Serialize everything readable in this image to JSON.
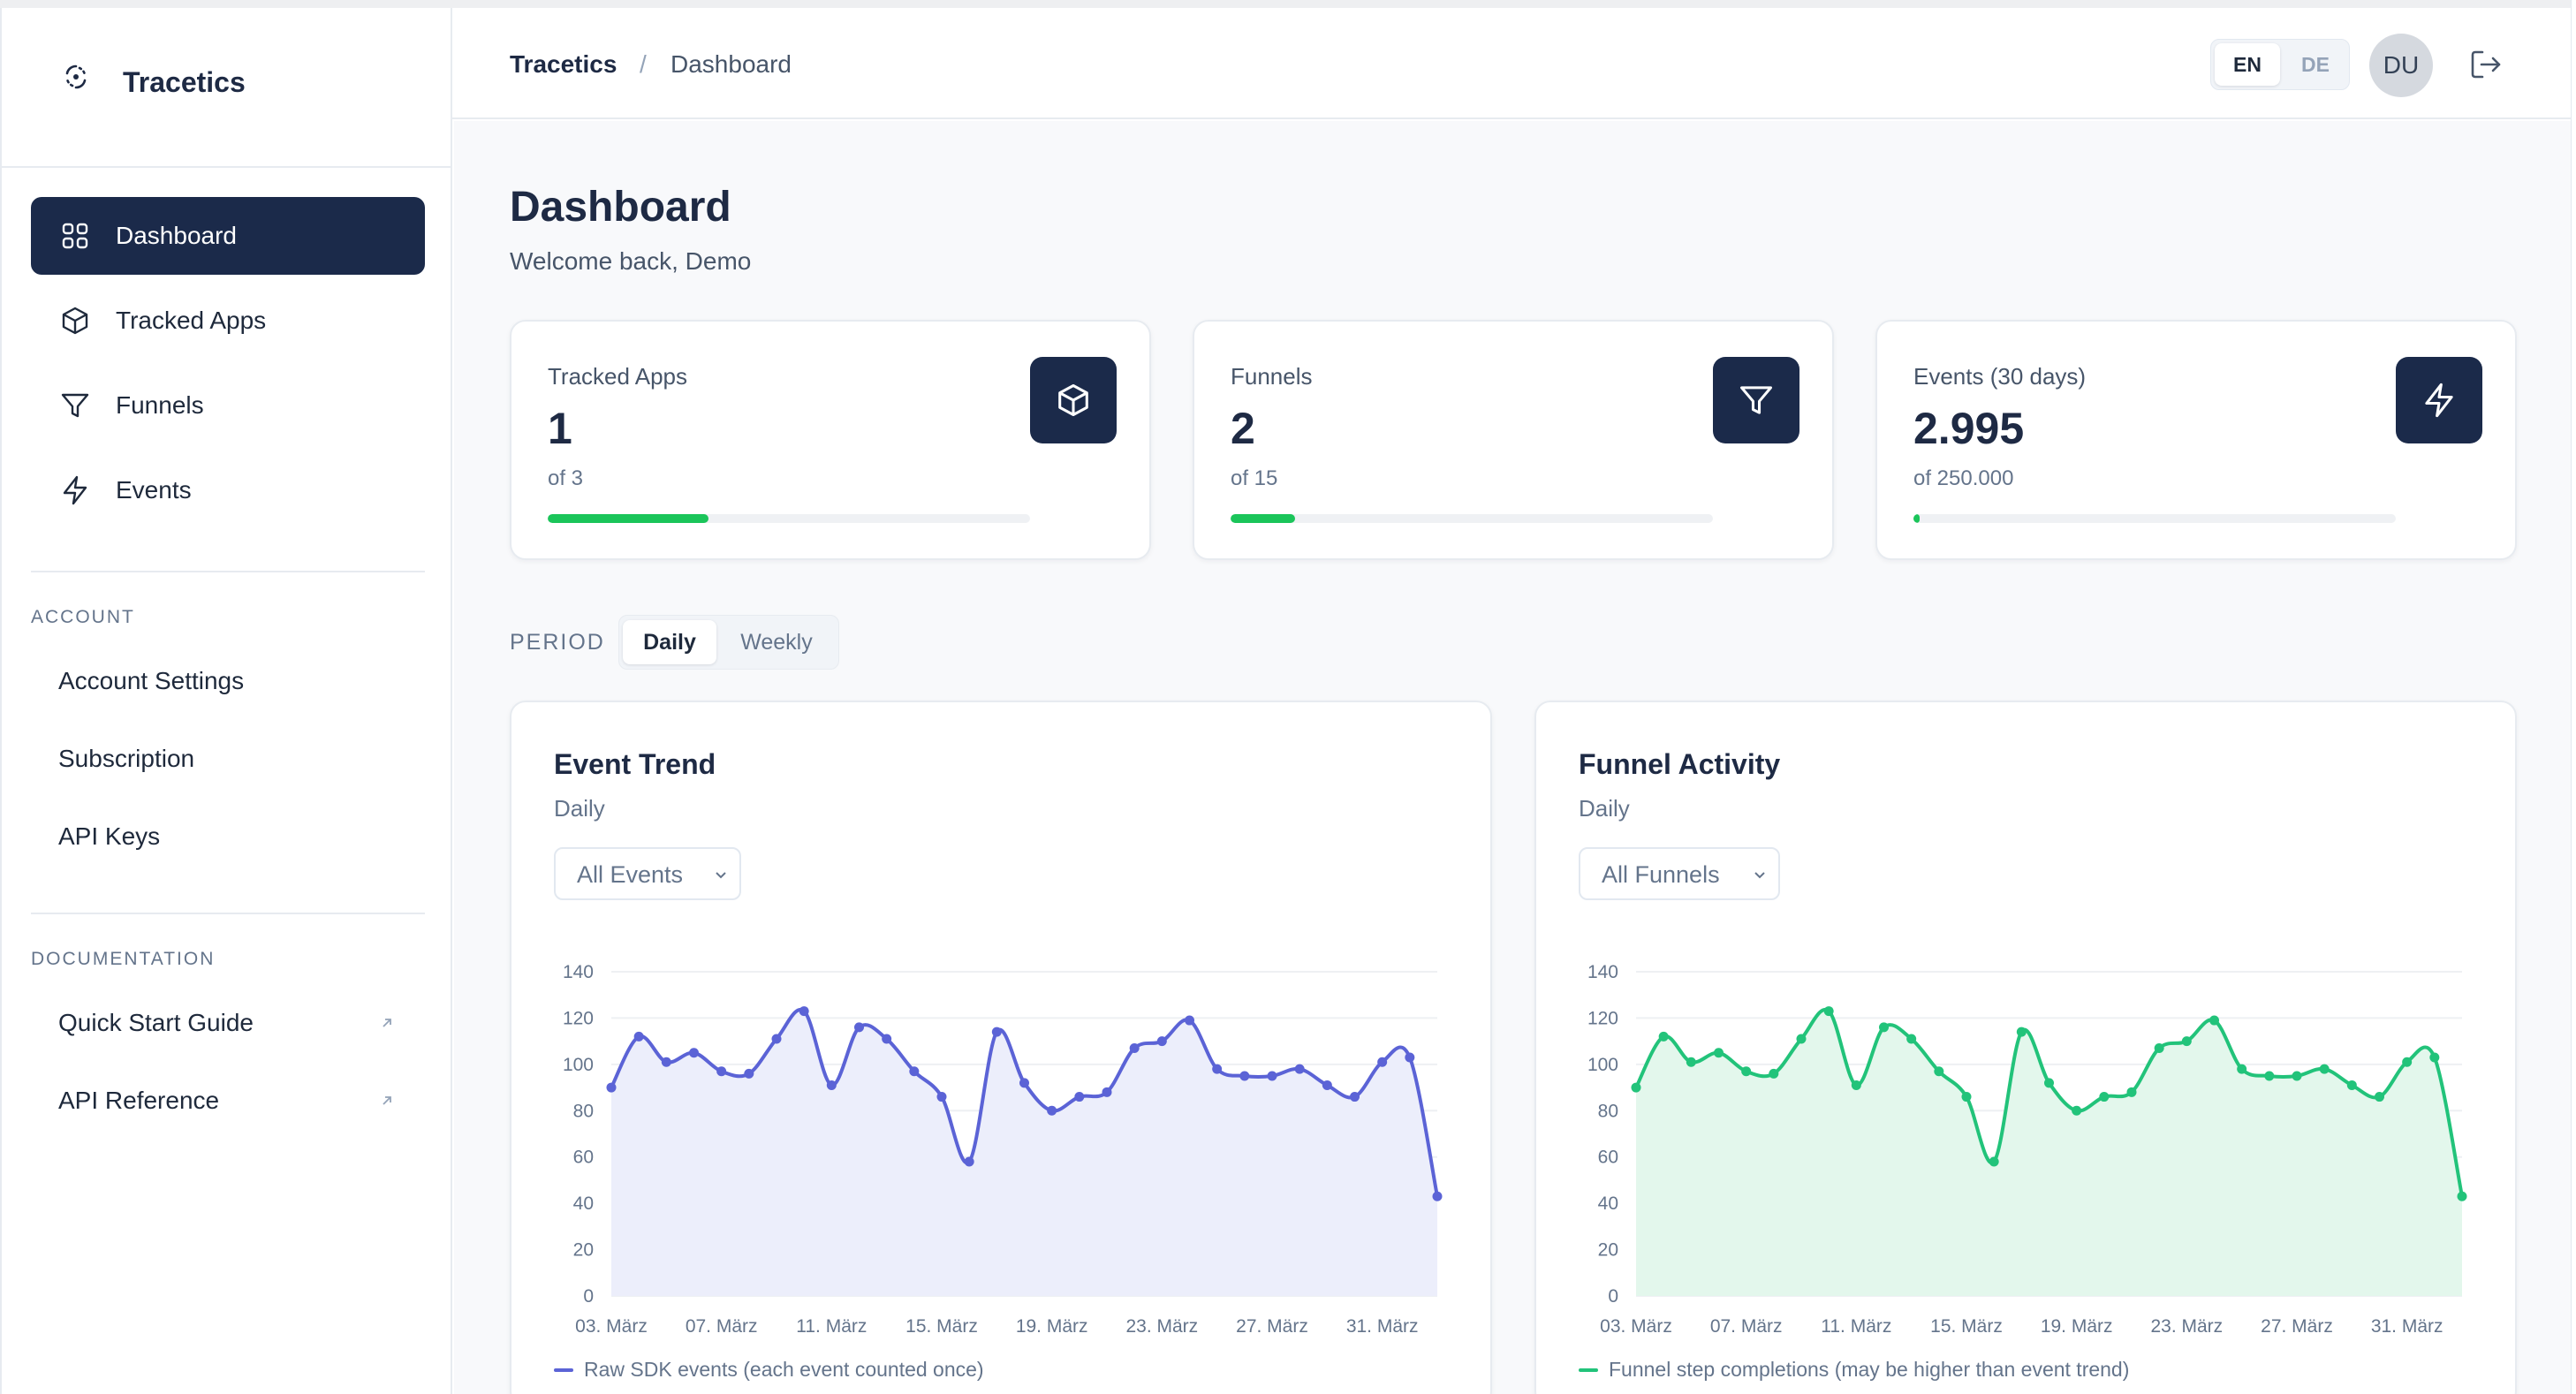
{
  "app": {
    "name": "Tracetics"
  },
  "sidebar": {
    "nav": [
      {
        "label": "Dashboard",
        "icon": "grid-icon",
        "active": true
      },
      {
        "label": "Tracked Apps",
        "icon": "box-icon",
        "active": false
      },
      {
        "label": "Funnels",
        "icon": "filter-icon",
        "active": false
      },
      {
        "label": "Events",
        "icon": "bolt-icon",
        "active": false
      }
    ],
    "account_title": "ACCOUNT",
    "account_links": [
      "Account Settings",
      "Subscription",
      "API Keys"
    ],
    "docs_title": "DOCUMENTATION",
    "docs_links": [
      "Quick Start Guide",
      "API Reference"
    ]
  },
  "header": {
    "breadcrumb_root": "Tracetics",
    "breadcrumb_sep": "/",
    "breadcrumb_current": "Dashboard",
    "lang_en": "EN",
    "lang_de": "DE",
    "avatar": "DU"
  },
  "page": {
    "title": "Dashboard",
    "subtitle": "Welcome back, Demo"
  },
  "stats": [
    {
      "label": "Tracked Apps",
      "value": "1",
      "sub": "of 3",
      "progress": 0.333,
      "icon": "box-icon"
    },
    {
      "label": "Funnels",
      "value": "2",
      "sub": "of 15",
      "progress": 0.133,
      "icon": "filter-icon"
    },
    {
      "label": "Events (30 days)",
      "value": "2.995",
      "sub": "of 250.000",
      "progress": 0.012,
      "icon": "bolt-icon"
    }
  ],
  "period": {
    "label": "PERIOD",
    "options": [
      "Daily",
      "Weekly"
    ],
    "selected": "Daily"
  },
  "colors": {
    "accent": "#1b2a4a",
    "success": "#1bc55a",
    "event_line": "#5b63d6",
    "event_fill": "#eceefb",
    "funnel_line": "#22c37a",
    "funnel_fill": "#e3f7ec"
  },
  "chart_data": [
    {
      "type": "area",
      "title": "Event Trend",
      "subtitle": "Daily",
      "filter": "All Events",
      "legend": "Raw SDK events (each event counted once)",
      "x_ticks": [
        "03. März",
        "07. März",
        "11. März",
        "15. März",
        "19. März",
        "23. März",
        "27. März",
        "31. März"
      ],
      "ylim": [
        0,
        140
      ],
      "y_ticks": [
        0,
        20,
        40,
        60,
        80,
        100,
        120,
        140
      ],
      "grid": true,
      "x": [
        "03. März",
        "04. März",
        "05. März",
        "06. März",
        "07. März",
        "08. März",
        "09. März",
        "10. März",
        "11. März",
        "12. März",
        "13. März",
        "14. März",
        "15. März",
        "16. März",
        "17. März",
        "18. März",
        "19. März",
        "20. März",
        "21. März",
        "22. März",
        "23. März",
        "24. März",
        "25. März",
        "26. März",
        "27. März",
        "28. März",
        "29. März",
        "30. März",
        "31. März",
        "01. Apr.",
        "02. Apr."
      ],
      "series": [
        {
          "values": [
            90,
            112,
            101,
            105,
            97,
            96,
            111,
            123,
            91,
            116,
            111,
            97,
            86,
            58,
            114,
            92,
            80,
            86,
            88,
            107,
            110,
            119,
            98,
            95,
            95,
            98,
            91,
            86,
            101,
            103,
            43
          ]
        }
      ]
    },
    {
      "type": "area",
      "title": "Funnel Activity",
      "subtitle": "Daily",
      "filter": "All Funnels",
      "legend": "Funnel step completions (may be higher than event trend)",
      "x_ticks": [
        "03. März",
        "07. März",
        "11. März",
        "15. März",
        "19. März",
        "23. März",
        "27. März",
        "31. März"
      ],
      "ylim": [
        0,
        140
      ],
      "y_ticks": [
        0,
        20,
        40,
        60,
        80,
        100,
        120,
        140
      ],
      "grid": true,
      "x": [
        "03. März",
        "04. März",
        "05. März",
        "06. März",
        "07. März",
        "08. März",
        "09. März",
        "10. März",
        "11. März",
        "12. März",
        "13. März",
        "14. März",
        "15. März",
        "16. März",
        "17. März",
        "18. März",
        "19. März",
        "20. März",
        "21. März",
        "22. März",
        "23. März",
        "24. März",
        "25. März",
        "26. März",
        "27. März",
        "28. März",
        "29. März",
        "30. März",
        "31. März",
        "01. Apr.",
        "02. Apr."
      ],
      "series": [
        {
          "values": [
            90,
            112,
            101,
            105,
            97,
            96,
            111,
            123,
            91,
            116,
            111,
            97,
            86,
            58,
            114,
            92,
            80,
            86,
            88,
            107,
            110,
            119,
            98,
            95,
            95,
            98,
            91,
            86,
            101,
            103,
            43
          ]
        }
      ]
    }
  ]
}
